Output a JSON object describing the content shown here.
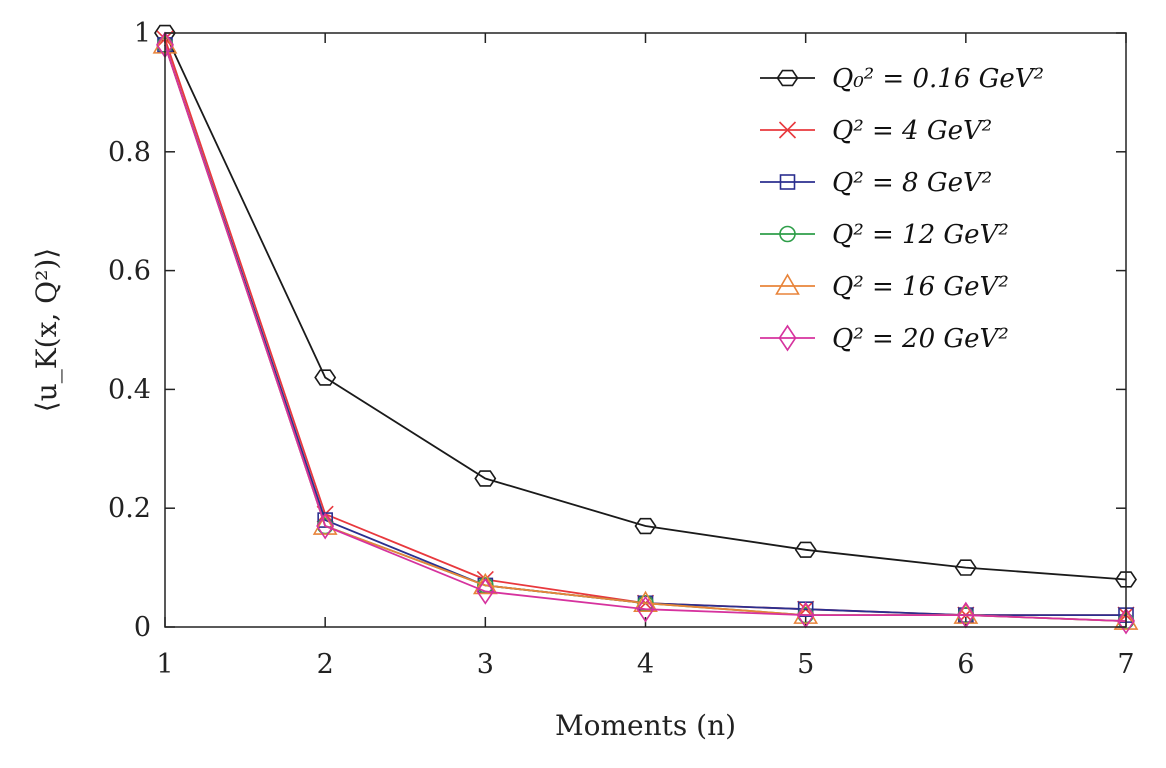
{
  "chart_data": {
    "type": "line",
    "title": "",
    "xlabel": "Moments (n)",
    "ylabel": "⟨u_K(x, Q²)⟩",
    "x": [
      1,
      2,
      3,
      4,
      5,
      6,
      7
    ],
    "xlim": [
      1,
      7
    ],
    "ylim": [
      0,
      1
    ],
    "x_ticks": [
      "1",
      "2",
      "3",
      "4",
      "5",
      "6",
      "7"
    ],
    "y_ticks": [
      "0",
      "0.2",
      "0.4",
      "0.6",
      "0.8",
      "1"
    ],
    "grid": false,
    "legend_position": "top-right",
    "series": [
      {
        "name": "Q₀² = 0.16 GeV²",
        "color": "#1a1a1a",
        "marker": "hexagon",
        "values": [
          1.0,
          0.42,
          0.25,
          0.17,
          0.13,
          0.1,
          0.08
        ]
      },
      {
        "name": "Q² = 4 GeV²",
        "color": "#e8383d",
        "marker": "x",
        "values": [
          0.99,
          0.19,
          0.08,
          0.04,
          0.03,
          0.02,
          0.02
        ]
      },
      {
        "name": "Q² = 8 GeV²",
        "color": "#2b2f8f",
        "marker": "square",
        "values": [
          0.98,
          0.18,
          0.07,
          0.04,
          0.03,
          0.02,
          0.02
        ]
      },
      {
        "name": "Q² = 12 GeV²",
        "color": "#2e9e49",
        "marker": "circle",
        "values": [
          0.98,
          0.17,
          0.07,
          0.04,
          0.02,
          0.02,
          0.01
        ]
      },
      {
        "name": "Q² = 16 GeV²",
        "color": "#e8843a",
        "marker": "triangle",
        "values": [
          0.98,
          0.17,
          0.07,
          0.04,
          0.02,
          0.02,
          0.01
        ]
      },
      {
        "name": "Q² = 20 GeV²",
        "color": "#d6329e",
        "marker": "diamond",
        "values": [
          0.98,
          0.17,
          0.06,
          0.03,
          0.02,
          0.02,
          0.01
        ]
      }
    ]
  }
}
